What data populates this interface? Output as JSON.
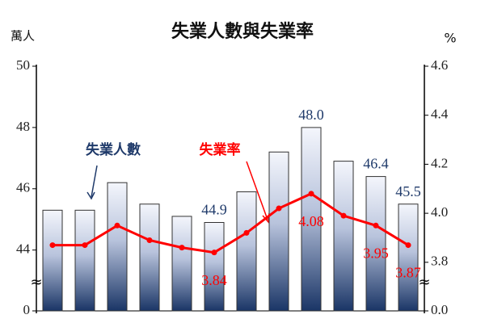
{
  "chart_data": {
    "type": "bar-line",
    "title": "失業人數與失業率",
    "ylabel": "萬人",
    "y2label": "%",
    "categories": [
      null,
      null,
      null,
      null,
      null,
      null,
      null,
      null,
      null,
      null,
      null,
      null
    ],
    "series": [
      {
        "name": "失業人數",
        "color": "#1f3a6a",
        "type": "bar",
        "axis": "y",
        "values": [
          45.3,
          45.3,
          46.2,
          45.5,
          45.1,
          44.9,
          45.9,
          47.2,
          48.0,
          46.9,
          46.4,
          45.5
        ],
        "value_labels": [
          null,
          null,
          null,
          null,
          null,
          "44.9",
          null,
          null,
          "48.0",
          null,
          "46.4",
          "45.5"
        ]
      },
      {
        "name": "失業率",
        "color": "#ff0000",
        "type": "line",
        "axis": "y2",
        "values": [
          3.87,
          3.87,
          3.95,
          3.89,
          3.86,
          3.84,
          3.92,
          4.02,
          4.08,
          3.99,
          3.95,
          3.87
        ],
        "value_labels": [
          null,
          null,
          null,
          null,
          null,
          "3.84",
          null,
          null,
          "4.08",
          null,
          "3.95",
          "3.87"
        ]
      }
    ],
    "ylim": [
      0,
      50
    ],
    "ybreak": [
      0,
      43.2
    ],
    "yticks": [
      0,
      44,
      46,
      48,
      50
    ],
    "y2lim": [
      0,
      4.6
    ],
    "y2break": [
      0,
      3.75
    ],
    "y2ticks": [
      {
        "value": 0,
        "label": "0.0"
      },
      {
        "value": 3.8,
        "label": "3.8"
      },
      {
        "value": 4.0,
        "label": "4.0"
      },
      {
        "value": 4.2,
        "label": "4.2"
      },
      {
        "value": 4.4,
        "label": "4.4"
      },
      {
        "value": 4.6,
        "label": "4.6"
      }
    ]
  }
}
